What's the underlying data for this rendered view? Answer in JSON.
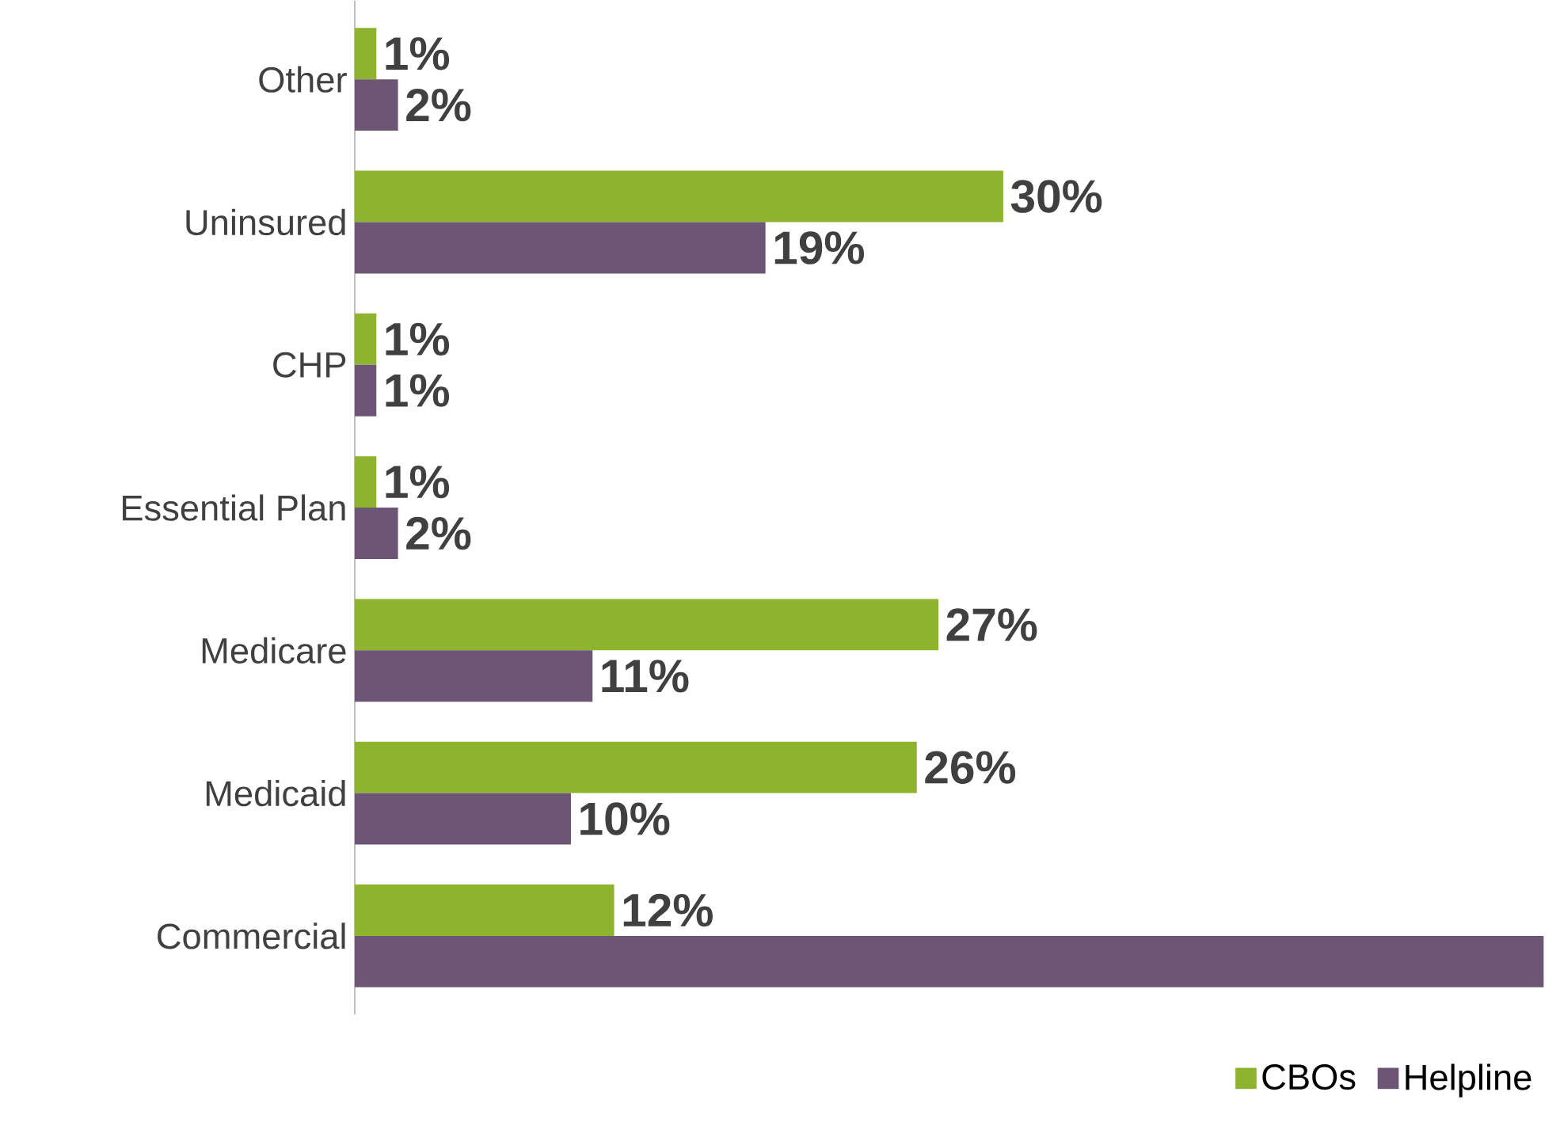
{
  "chart_data": {
    "type": "bar",
    "orientation": "horizontal",
    "categories": [
      "Other",
      "Uninsured",
      "CHP",
      "Essential Plan",
      "Medicare",
      "Medicaid",
      "Commercial"
    ],
    "series": [
      {
        "name": "CBOs",
        "color": "#8db32f",
        "values": [
          1,
          30,
          1,
          1,
          27,
          26,
          12
        ],
        "value_labels": [
          "1%",
          "30%",
          "1%",
          "1%",
          "27%",
          "26%",
          "12%"
        ]
      },
      {
        "name": "Helpline",
        "color": "#6d5675",
        "values": [
          2,
          19,
          1,
          2,
          11,
          10,
          55
        ],
        "value_labels": [
          "2%",
          "19%",
          "1%",
          "2%",
          "11%",
          "10%",
          null
        ]
      }
    ],
    "xlim": [
      0,
      55
    ],
    "tick_labels": "y",
    "legend": "bottom right"
  }
}
